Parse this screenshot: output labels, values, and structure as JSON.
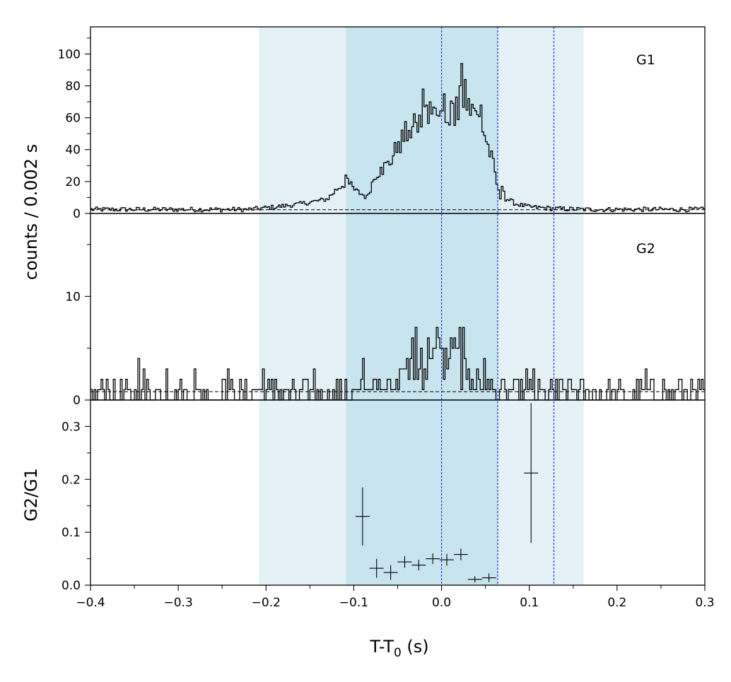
{
  "chart_data": {
    "type": "line",
    "xlabel_main": "T-T",
    "xlabel_sub": "0",
    "xlabel_unit": " (s)",
    "ylabel_top": "counts /  0.002 s",
    "ylabel_bottom": "G2/G1",
    "xlim": [
      -0.4,
      0.3
    ],
    "x_ticks": [
      "−0.4",
      "−0.3",
      "−0.2",
      "−0.1",
      "0.0",
      "0.1",
      "0.2",
      "0.3"
    ],
    "x_tick_values": [
      -0.4,
      -0.3,
      -0.2,
      -0.1,
      0.0,
      0.1,
      0.2,
      0.3
    ],
    "shaded_regions": [
      {
        "from": -0.208,
        "to": 0.162,
        "color": "#e4f2f7"
      },
      {
        "from": -0.109,
        "to": 0.064,
        "color": "#c8e4ee"
      }
    ],
    "vlines": [
      0.0,
      0.064,
      0.128
    ],
    "vline_color": "#2233dd",
    "panels": [
      {
        "label": "G1",
        "ylim": [
          0,
          117
        ],
        "y_ticks": [
          "0",
          "20",
          "40",
          "60",
          "80",
          "100"
        ],
        "y_tick_values": [
          0,
          20,
          40,
          60,
          80,
          100
        ],
        "background": 2.3,
        "profile": [
          [
            -0.4,
            2.5
          ],
          [
            -0.22,
            2.5
          ],
          [
            -0.19,
            4
          ],
          [
            -0.16,
            6
          ],
          [
            -0.13,
            9
          ],
          [
            -0.118,
            16
          ],
          [
            -0.108,
            20
          ],
          [
            -0.098,
            14
          ],
          [
            -0.09,
            12
          ],
          [
            -0.085,
            10
          ],
          [
            -0.075,
            25
          ],
          [
            -0.06,
            31
          ],
          [
            -0.05,
            42
          ],
          [
            -0.04,
            50
          ],
          [
            -0.03,
            54
          ],
          [
            -0.02,
            60
          ],
          [
            -0.01,
            62
          ],
          [
            0.0,
            60
          ],
          [
            0.01,
            64
          ],
          [
            0.02,
            68
          ],
          [
            0.035,
            64
          ],
          [
            0.045,
            58
          ],
          [
            0.052,
            44
          ],
          [
            0.06,
            28
          ],
          [
            0.066,
            10
          ],
          [
            0.075,
            9
          ],
          [
            0.085,
            6
          ],
          [
            0.1,
            4
          ],
          [
            0.13,
            3
          ],
          [
            0.16,
            2.5
          ],
          [
            0.3,
            2.5
          ]
        ],
        "spikes": [
          [
            -0.11,
            24
          ],
          [
            -0.108,
            22
          ],
          [
            -0.07,
            29
          ],
          [
            -0.05,
            45
          ],
          [
            -0.038,
            52
          ],
          [
            -0.03,
            57
          ],
          [
            -0.022,
            78
          ],
          [
            -0.018,
            68
          ],
          [
            -0.014,
            70
          ],
          [
            -0.008,
            66
          ],
          [
            -0.004,
            61
          ],
          [
            0.002,
            75
          ],
          [
            0.006,
            57
          ],
          [
            0.012,
            69
          ],
          [
            0.016,
            73
          ],
          [
            0.02,
            80
          ],
          [
            0.022,
            94
          ],
          [
            0.026,
            84
          ],
          [
            0.03,
            72
          ],
          [
            0.036,
            66
          ],
          [
            0.04,
            62
          ],
          [
            0.044,
            68
          ],
          [
            0.068,
            17
          ],
          [
            0.07,
            14
          ]
        ]
      },
      {
        "label": "G2",
        "ylim": [
          0,
          18
        ],
        "y_ticks": [
          "0",
          "10"
        ],
        "y_tick_values": [
          0,
          10
        ],
        "background": 0.8,
        "profile": [
          [
            -0.4,
            0.8
          ],
          [
            -0.11,
            1.0
          ],
          [
            -0.06,
            1.5
          ],
          [
            -0.03,
            3
          ],
          [
            0.0,
            4
          ],
          [
            0.02,
            3.5
          ],
          [
            0.04,
            1.5
          ],
          [
            0.07,
            1.0
          ],
          [
            0.3,
            0.8
          ]
        ],
        "spikes": [
          [
            -0.383,
            2
          ],
          [
            -0.346,
            4
          ],
          [
            -0.34,
            3
          ],
          [
            -0.314,
            3
          ],
          [
            -0.282,
            3
          ],
          [
            -0.25,
            2
          ],
          [
            -0.244,
            3
          ],
          [
            -0.204,
            3
          ],
          [
            -0.19,
            2
          ],
          [
            -0.146,
            3
          ],
          [
            -0.11,
            2
          ],
          [
            -0.09,
            4
          ],
          [
            -0.072,
            2
          ],
          [
            -0.06,
            2
          ],
          [
            -0.04,
            4
          ],
          [
            -0.035,
            6
          ],
          [
            -0.03,
            7
          ],
          [
            -0.024,
            5
          ],
          [
            -0.016,
            6
          ],
          [
            -0.012,
            4
          ],
          [
            -0.006,
            7
          ],
          [
            -0.004,
            6
          ],
          [
            0.004,
            5
          ],
          [
            0.01,
            6
          ],
          [
            0.014,
            6
          ],
          [
            0.02,
            7
          ],
          [
            0.024,
            7
          ],
          [
            0.03,
            3
          ],
          [
            0.04,
            3
          ],
          [
            0.048,
            4
          ],
          [
            0.096,
            3
          ],
          [
            0.104,
            3
          ],
          [
            0.13,
            2
          ],
          [
            0.146,
            2
          ],
          [
            0.232,
            3
          ],
          [
            0.252,
            2
          ],
          [
            0.272,
            2
          ]
        ]
      },
      {
        "label": "",
        "ylim": [
          0,
          0.35
        ],
        "y_ticks": [
          "0.0",
          "0.1",
          "0.2",
          "0.3"
        ],
        "y_tick_values": [
          0.0,
          0.1,
          0.2,
          0.3
        ],
        "points": [
          {
            "x": -0.09,
            "y": 0.13,
            "xerr": 0.008,
            "yerr": 0.055
          },
          {
            "x": -0.074,
            "y": 0.032,
            "xerr": 0.008,
            "yerr": 0.018
          },
          {
            "x": -0.058,
            "y": 0.024,
            "xerr": 0.008,
            "yerr": 0.014
          },
          {
            "x": -0.042,
            "y": 0.044,
            "xerr": 0.008,
            "yerr": 0.011
          },
          {
            "x": -0.026,
            "y": 0.038,
            "xerr": 0.008,
            "yerr": 0.01
          },
          {
            "x": -0.01,
            "y": 0.05,
            "xerr": 0.008,
            "yerr": 0.01
          },
          {
            "x": 0.006,
            "y": 0.048,
            "xerr": 0.008,
            "yerr": 0.011
          },
          {
            "x": 0.022,
            "y": 0.058,
            "xerr": 0.008,
            "yerr": 0.011
          },
          {
            "x": 0.038,
            "y": 0.011,
            "xerr": 0.008,
            "yerr": 0.006
          },
          {
            "x": 0.054,
            "y": 0.014,
            "xerr": 0.008,
            "yerr": 0.008
          },
          {
            "x": 0.102,
            "y": 0.212,
            "xerr": 0.008,
            "yerr": 0.132
          }
        ]
      }
    ]
  }
}
